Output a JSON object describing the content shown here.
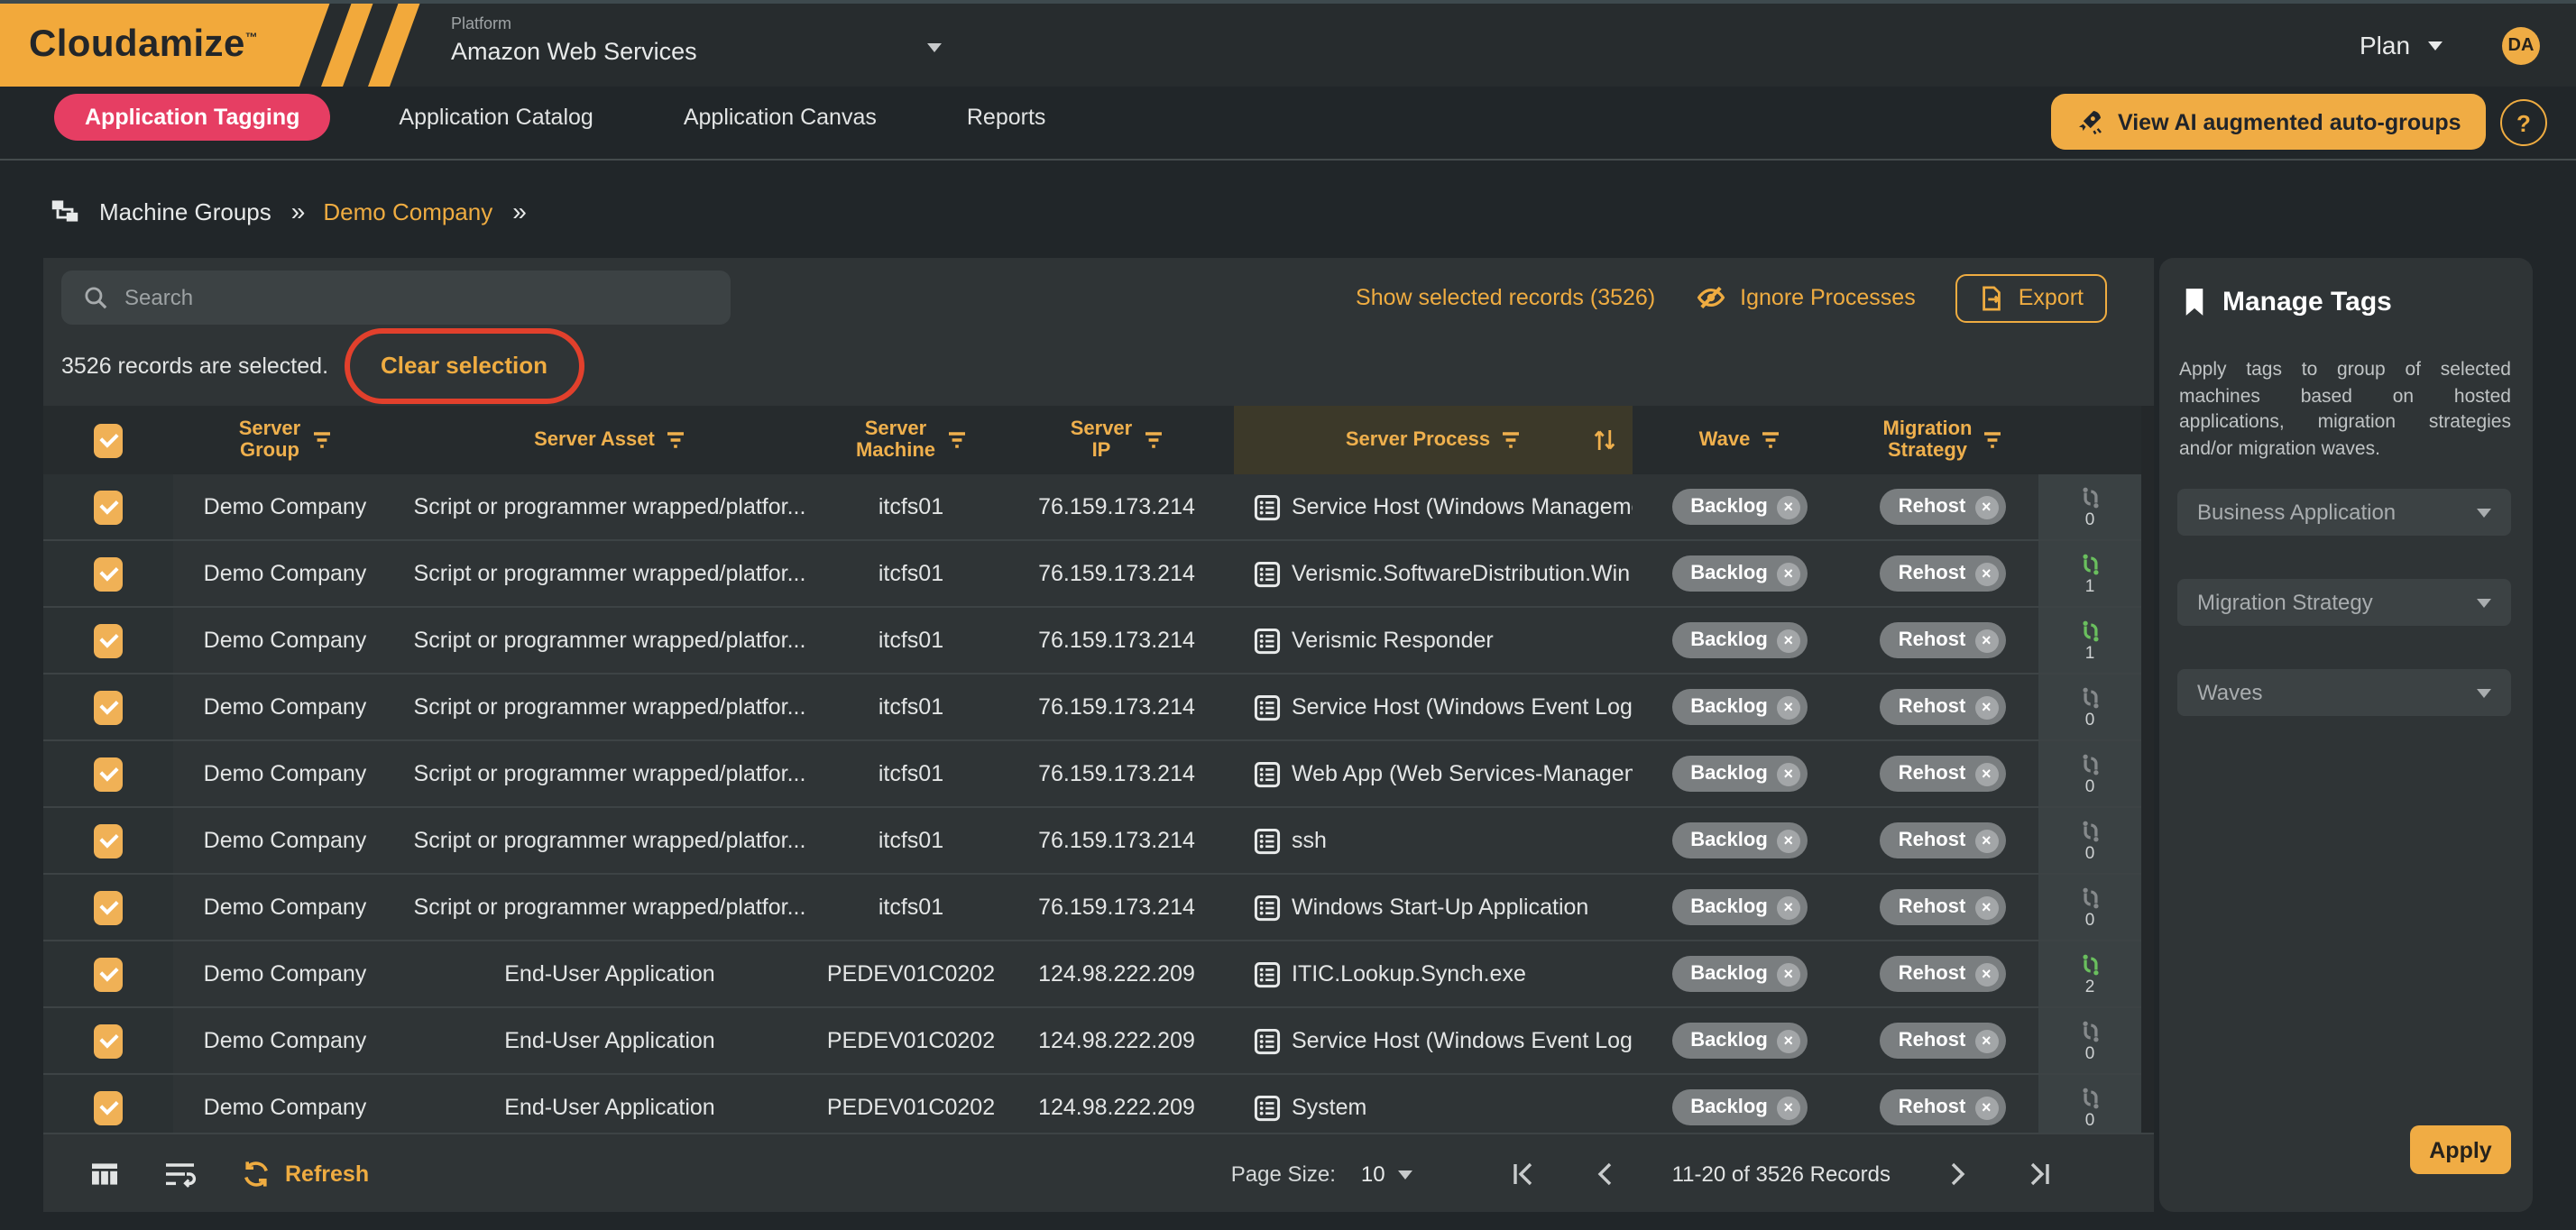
{
  "header": {
    "logo": "Cloudamize",
    "logo_tm": "™",
    "platform_label": "Platform",
    "platform_value": "Amazon Web Services",
    "plan_label": "Plan",
    "avatar_initials": "DA"
  },
  "nav": {
    "tabs": [
      {
        "label": "Application Tagging",
        "active": true
      },
      {
        "label": "Application Catalog",
        "active": false
      },
      {
        "label": "Application Canvas",
        "active": false
      },
      {
        "label": "Reports",
        "active": false
      }
    ],
    "ai_button_label": "View AI augmented auto-groups",
    "help_label": "?"
  },
  "breadcrumb": {
    "separator": "»",
    "items": [
      {
        "label": "Machine Groups",
        "accent": false
      },
      {
        "label": "Demo Company",
        "accent": true
      }
    ]
  },
  "toolbar": {
    "search_placeholder": "Search",
    "show_selected_label": "Show selected records (3526)",
    "ignore_processes_label": "Ignore Processes",
    "export_label": "Export"
  },
  "selection": {
    "text": "3526 records are selected.",
    "clear_label": "Clear selection"
  },
  "table": {
    "columns": [
      {
        "label": "Server Group",
        "filter": true,
        "wrap": true
      },
      {
        "label": "Server Asset",
        "filter": true,
        "wrap": false
      },
      {
        "label": "Server Machine",
        "filter": true,
        "wrap": true
      },
      {
        "label": "Server IP",
        "filter": true,
        "wrap": true
      },
      {
        "label": "Server Process",
        "filter": true,
        "sort": true,
        "highlight": true,
        "wrap": false
      },
      {
        "label": "Wave",
        "filter": true,
        "wrap": false
      },
      {
        "label": "Migration Strategy",
        "filter": true,
        "wrap": true
      }
    ],
    "rows": [
      {
        "group": "Demo Company",
        "asset": "Script or programmer wrapped/platfor...",
        "machine": "itcfs01",
        "ip": "76.159.173.214",
        "process": "Service Host (Windows Management In",
        "wave": "Backlog",
        "strategy": "Rehost",
        "tag_count": "0",
        "tag_active": false
      },
      {
        "group": "Demo Company",
        "asset": "Script or programmer wrapped/platfor...",
        "machine": "itcfs01",
        "ip": "76.159.173.214",
        "process": "Verismic.SoftwareDistribution.Win",
        "wave": "Backlog",
        "strategy": "Rehost",
        "tag_count": "1",
        "tag_active": true
      },
      {
        "group": "Demo Company",
        "asset": "Script or programmer wrapped/platfor...",
        "machine": "itcfs01",
        "ip": "76.159.173.214",
        "process": "Verismic Responder",
        "wave": "Backlog",
        "strategy": "Rehost",
        "tag_count": "1",
        "tag_active": true
      },
      {
        "group": "Demo Company",
        "asset": "Script or programmer wrapped/platfor...",
        "machine": "itcfs01",
        "ip": "76.159.173.214",
        "process": "Service Host (Windows Event Log)",
        "wave": "Backlog",
        "strategy": "Rehost",
        "tag_count": "0",
        "tag_active": false
      },
      {
        "group": "Demo Company",
        "asset": "Script or programmer wrapped/platfor...",
        "machine": "itcfs01",
        "ip": "76.159.173.214",
        "process": "Web App (Web Services-Management)",
        "wave": "Backlog",
        "strategy": "Rehost",
        "tag_count": "0",
        "tag_active": false
      },
      {
        "group": "Demo Company",
        "asset": "Script or programmer wrapped/platfor...",
        "machine": "itcfs01",
        "ip": "76.159.173.214",
        "process": "ssh",
        "wave": "Backlog",
        "strategy": "Rehost",
        "tag_count": "0",
        "tag_active": false
      },
      {
        "group": "Demo Company",
        "asset": "Script or programmer wrapped/platfor...",
        "machine": "itcfs01",
        "ip": "76.159.173.214",
        "process": "Windows Start-Up Application",
        "wave": "Backlog",
        "strategy": "Rehost",
        "tag_count": "0",
        "tag_active": false
      },
      {
        "group": "Demo Company",
        "asset": "End-User Application",
        "machine": "PEDEV01C0202",
        "ip": "124.98.222.209",
        "process": "ITIC.Lookup.Synch.exe",
        "wave": "Backlog",
        "strategy": "Rehost",
        "tag_count": "2",
        "tag_active": true
      },
      {
        "group": "Demo Company",
        "asset": "End-User Application",
        "machine": "PEDEV01C0202",
        "ip": "124.98.222.209",
        "process": "Service Host (Windows Event Log)",
        "wave": "Backlog",
        "strategy": "Rehost",
        "tag_count": "0",
        "tag_active": false
      },
      {
        "group": "Demo Company",
        "asset": "End-User Application",
        "machine": "PEDEV01C0202",
        "ip": "124.98.222.209",
        "process": "System",
        "wave": "Backlog",
        "strategy": "Rehost",
        "tag_count": "0",
        "tag_active": false
      }
    ]
  },
  "footer": {
    "refresh_label": "Refresh",
    "page_size_label": "Page Size:",
    "page_size_value": "10",
    "range_text": "11-20 of 3526 Records"
  },
  "panel": {
    "title": "Manage Tags",
    "description": "Apply tags to group of selected machines based on hosted applications, migration strategies and/or migration waves.",
    "selects": [
      "Business Application",
      "Migration Strategy",
      "Waves"
    ],
    "apply_label": "Apply"
  },
  "colors": {
    "accent_orange": "#efac41",
    "active_tab_pink": "#e63e63",
    "badge_gray": "#7a7e80",
    "tag_active_green": "#6abf5e",
    "annotation_red": "#e2402c",
    "header_text_orange": "#efb04d"
  }
}
